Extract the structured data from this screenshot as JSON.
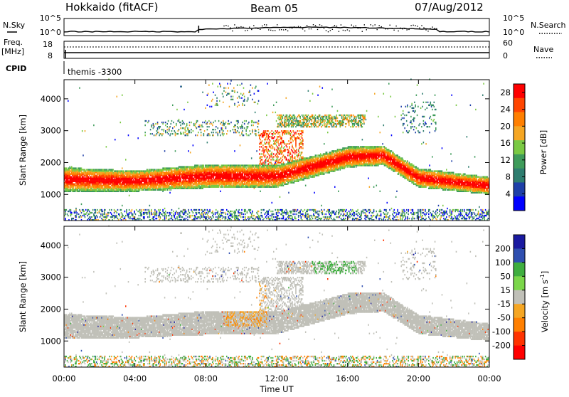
{
  "header": {
    "station": "Hokkaido (fitACF)",
    "beam": "Beam 05",
    "date": "07/Aug/2012"
  },
  "noise_panel": {
    "left_label": "N.Sky",
    "right_label": "N.Search",
    "left_top_tick": "10^5",
    "left_bottom_tick": "10^0",
    "right_top_tick": "10^5",
    "right_bottom_tick": "10^0"
  },
  "freq_panel": {
    "left_label_1": "Freq.",
    "left_label_2": "[MHz]",
    "right_label": "Nave",
    "left_ticks": [
      "18",
      "8"
    ],
    "right_ticks": [
      "60",
      "0"
    ]
  },
  "cpid": {
    "label": "CPID",
    "program": "themis -3300"
  },
  "colors": {
    "power": [
      "#0000ff",
      "#1e3fa8",
      "#2e7d6f",
      "#3e9b5a",
      "#7ac943",
      "#f5a623",
      "#ff7f00",
      "#ff4500",
      "#ff0000"
    ],
    "velocity": [
      "#1a1aa0",
      "#2f4fb0",
      "#3fae3f",
      "#7bd64a",
      "#c0c0b8",
      "#f5a623",
      "#ff7f00",
      "#ff3300",
      "#ff0000"
    ]
  },
  "chart_data": [
    {
      "type": "heatmap",
      "panel": "power",
      "ylabel": "Slant Range [km]",
      "ylim": [
        180,
        4600
      ],
      "yticks": [
        "1000",
        "2000",
        "3000",
        "4000"
      ],
      "x": [
        "00:00",
        "04:00",
        "08:00",
        "12:00",
        "16:00",
        "20:00",
        "00:00"
      ],
      "colorbar_label": "Power [dB]",
      "colorbar_ticks": [
        "4",
        "8",
        "12",
        "16",
        "20",
        "24",
        "28"
      ],
      "zlim": [
        0,
        30
      ],
      "bands": [
        {
          "t": 0,
          "center": 1450,
          "width": 750
        },
        {
          "t": 4,
          "center": 1400,
          "width": 650
        },
        {
          "t": 8,
          "center": 1550,
          "width": 750
        },
        {
          "t": 12,
          "center": 1550,
          "width": 700
        },
        {
          "t": 16,
          "center": 2150,
          "width": 650
        },
        {
          "t": 18,
          "center": 2200,
          "width": 600
        },
        {
          "t": 20,
          "center": 1500,
          "width": 600
        },
        {
          "t": 24,
          "center": 1250,
          "width": 550
        }
      ]
    },
    {
      "type": "heatmap",
      "panel": "velocity",
      "ylabel": "Slant Range [km]",
      "ylim": [
        180,
        4600
      ],
      "yticks": [
        "1000",
        "2000",
        "3000",
        "4000"
      ],
      "x": [
        "00:00",
        "04:00",
        "08:00",
        "12:00",
        "16:00",
        "20:00",
        "00:00"
      ],
      "xlabel": "Time UT",
      "colorbar_label": "Velocity [m s^-1]",
      "colorbar_ticks": [
        "200",
        "100",
        "50",
        "15",
        "-15",
        "-50",
        "-100",
        "-200"
      ],
      "zlim": [
        -250,
        250
      ]
    }
  ]
}
